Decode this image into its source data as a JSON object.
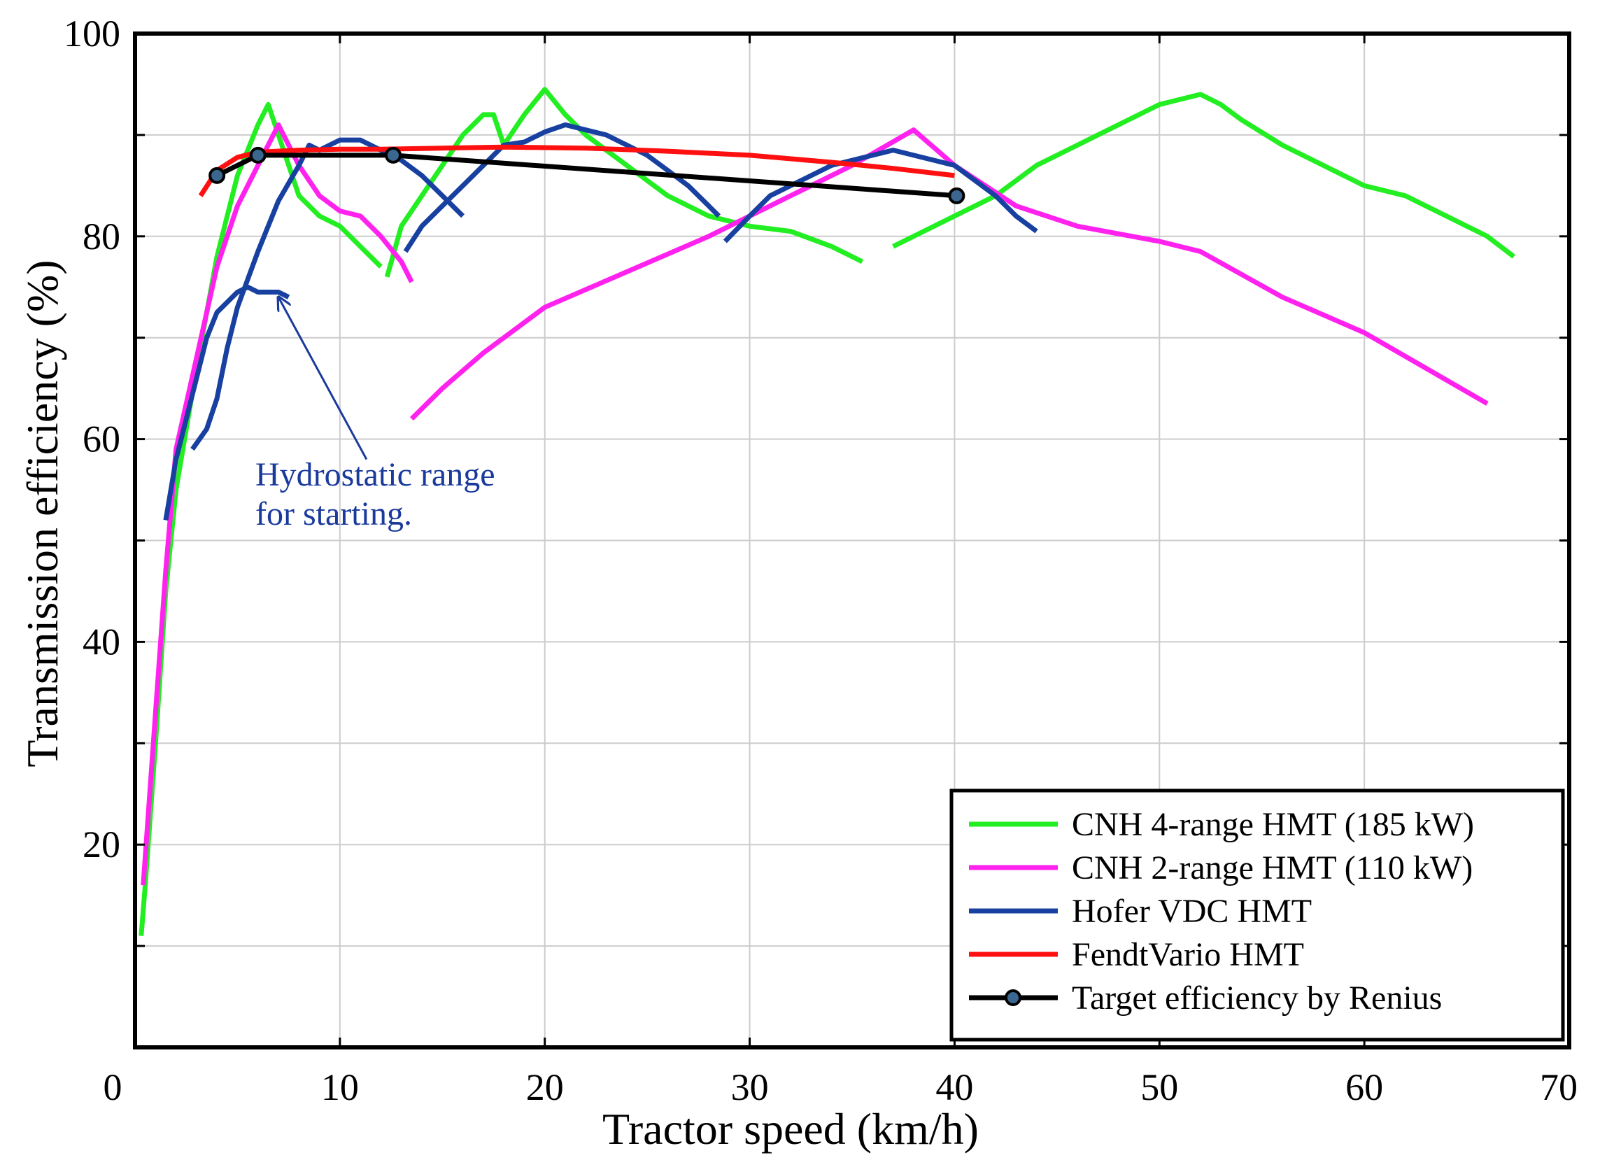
{
  "chart_data": {
    "type": "line",
    "title": "",
    "xlabel": "Tractor speed (km/h)",
    "ylabel": "Transmission efficiency (%)",
    "xlim": [
      0,
      70
    ],
    "ylim": [
      0,
      100
    ],
    "x_ticks": [
      0,
      10,
      20,
      30,
      40,
      50,
      60,
      70
    ],
    "y_ticks": [
      20,
      40,
      60,
      80,
      100
    ],
    "grid": true,
    "legend_position": "bottom-right",
    "annotation": {
      "lines": [
        "Hydrostatic range",
        "for starting."
      ],
      "color": "#1a3a9c",
      "arrow_tip": [
        7,
        74
      ],
      "arrow_tail": [
        11.3,
        58
      ]
    },
    "series": [
      {
        "name": "CNH 4-range HMT (185 kW)",
        "color": "#22ee22",
        "segments": [
          [
            [
              0.3,
              11
            ],
            [
              0.5,
              16
            ],
            [
              1,
              30
            ],
            [
              1.5,
              45
            ],
            [
              2,
              55
            ],
            [
              3,
              67
            ],
            [
              4,
              78
            ],
            [
              5,
              86
            ],
            [
              6,
              91
            ],
            [
              6.5,
              93
            ],
            [
              7,
              90
            ],
            [
              8,
              84
            ],
            [
              9,
              82
            ],
            [
              10,
              81
            ],
            [
              11,
              79
            ],
            [
              12,
              77
            ]
          ],
          [
            [
              12.3,
              76
            ],
            [
              13,
              81
            ],
            [
              14,
              84
            ],
            [
              15,
              87
            ],
            [
              16,
              90
            ],
            [
              17,
              92
            ],
            [
              17.5,
              92
            ],
            [
              18,
              89
            ],
            [
              19,
              92
            ],
            [
              20,
              94.5
            ],
            [
              21,
              92
            ],
            [
              22,
              90
            ],
            [
              24,
              87
            ],
            [
              26,
              84
            ],
            [
              28,
              82
            ],
            [
              30,
              81
            ],
            [
              32,
              80.5
            ],
            [
              34,
              79
            ],
            [
              35.5,
              77.5
            ]
          ],
          [
            [
              37,
              79
            ],
            [
              38,
              80
            ],
            [
              40,
              82
            ],
            [
              42,
              84
            ],
            [
              44,
              87
            ],
            [
              46,
              89
            ],
            [
              48,
              91
            ],
            [
              50,
              93
            ],
            [
              52,
              94
            ],
            [
              53,
              93
            ],
            [
              54,
              91.5
            ],
            [
              56,
              89
            ],
            [
              58,
              87
            ],
            [
              60,
              85
            ],
            [
              62,
              84
            ],
            [
              64,
              82
            ],
            [
              66,
              80
            ],
            [
              67.3,
              78
            ]
          ]
        ]
      },
      {
        "name": "CNH 2-range HMT (110 kW)",
        "color": "#ff22ee",
        "segments": [
          [
            [
              0.4,
              16
            ],
            [
              1,
              33
            ],
            [
              1.5,
              47
            ],
            [
              2,
              59
            ],
            [
              3,
              68
            ],
            [
              4,
              77
            ],
            [
              5,
              83
            ],
            [
              6,
              87
            ],
            [
              7,
              91
            ],
            [
              7.5,
              89
            ],
            [
              8,
              87
            ],
            [
              9,
              84
            ],
            [
              10,
              82.5
            ],
            [
              11,
              82
            ],
            [
              12,
              80
            ],
            [
              13,
              77.5
            ],
            [
              13.5,
              75.5
            ]
          ],
          [
            [
              13.5,
              62
            ],
            [
              15,
              65
            ],
            [
              17,
              68.5
            ],
            [
              20,
              73
            ],
            [
              24,
              76.5
            ],
            [
              28,
              80
            ],
            [
              32,
              84
            ],
            [
              35,
              87
            ],
            [
              38,
              90.5
            ],
            [
              40,
              87
            ],
            [
              43,
              83
            ],
            [
              46,
              81
            ],
            [
              50,
              79.5
            ],
            [
              52,
              78.5
            ],
            [
              56,
              74
            ],
            [
              60,
              70.5
            ],
            [
              63,
              67
            ],
            [
              66,
              63.5
            ]
          ]
        ]
      },
      {
        "name": "Hofer VDC HMT",
        "color": "#1840a0",
        "segments": [
          [
            [
              1.5,
              52
            ],
            [
              2,
              58
            ],
            [
              3,
              66
            ],
            [
              3.5,
              70
            ],
            [
              4,
              72.5
            ],
            [
              5,
              74.5
            ],
            [
              5.5,
              75
            ],
            [
              6,
              74.5
            ],
            [
              7,
              74.5
            ],
            [
              7.5,
              74
            ]
          ],
          [
            [
              2.8,
              59
            ],
            [
              3.5,
              61
            ],
            [
              4,
              64
            ],
            [
              4.5,
              69
            ],
            [
              5,
              73
            ],
            [
              6,
              78.5
            ],
            [
              7,
              83.5
            ],
            [
              8,
              87
            ],
            [
              8.5,
              89
            ],
            [
              9,
              88.5
            ],
            [
              9.5,
              89
            ],
            [
              10,
              89.5
            ],
            [
              11,
              89.5
            ],
            [
              12,
              88.5
            ],
            [
              13,
              87.5
            ],
            [
              14,
              86
            ],
            [
              15,
              84
            ],
            [
              16,
              82
            ]
          ],
          [
            [
              13.2,
              78.5
            ],
            [
              14,
              81
            ],
            [
              15,
              83
            ],
            [
              16,
              85
            ],
            [
              17,
              87
            ],
            [
              18,
              89
            ],
            [
              19,
              89.3
            ],
            [
              20,
              90.3
            ],
            [
              21,
              91
            ],
            [
              22,
              90.5
            ],
            [
              23,
              90
            ],
            [
              24,
              89
            ],
            [
              25,
              88
            ],
            [
              26,
              86.5
            ],
            [
              27,
              85
            ],
            [
              28,
              83
            ],
            [
              28.5,
              82
            ]
          ],
          [
            [
              28.8,
              79.5
            ],
            [
              30,
              82
            ],
            [
              31,
              84
            ],
            [
              32,
              85
            ],
            [
              34,
              87
            ],
            [
              35,
              87.5
            ],
            [
              36,
              88
            ],
            [
              37,
              88.5
            ],
            [
              38,
              88
            ],
            [
              39,
              87.5
            ],
            [
              40,
              87
            ],
            [
              41,
              85.5
            ],
            [
              42,
              84
            ],
            [
              43,
              82
            ],
            [
              44,
              80.5
            ]
          ]
        ]
      },
      {
        "name": "FendtVario HMT",
        "color": "#ff1010",
        "segments": [
          [
            [
              3.2,
              84
            ],
            [
              4,
              86.5
            ],
            [
              5,
              87.8
            ],
            [
              6,
              88.3
            ],
            [
              8,
              88.5
            ],
            [
              10,
              88.6
            ],
            [
              12,
              88.6
            ],
            [
              15,
              88.7
            ],
            [
              18,
              88.8
            ],
            [
              22,
              88.7
            ],
            [
              26,
              88.4
            ],
            [
              30,
              88
            ],
            [
              34,
              87.3
            ],
            [
              37,
              86.7
            ],
            [
              40,
              86
            ]
          ]
        ]
      },
      {
        "name": "Target efficiency by Renius",
        "color": "#000000",
        "marker_color": "#3a6690",
        "segments": [
          [
            [
              4,
              86
            ],
            [
              6,
              88
            ],
            [
              12.6,
              88
            ],
            [
              40.1,
              84
            ]
          ]
        ]
      }
    ]
  }
}
